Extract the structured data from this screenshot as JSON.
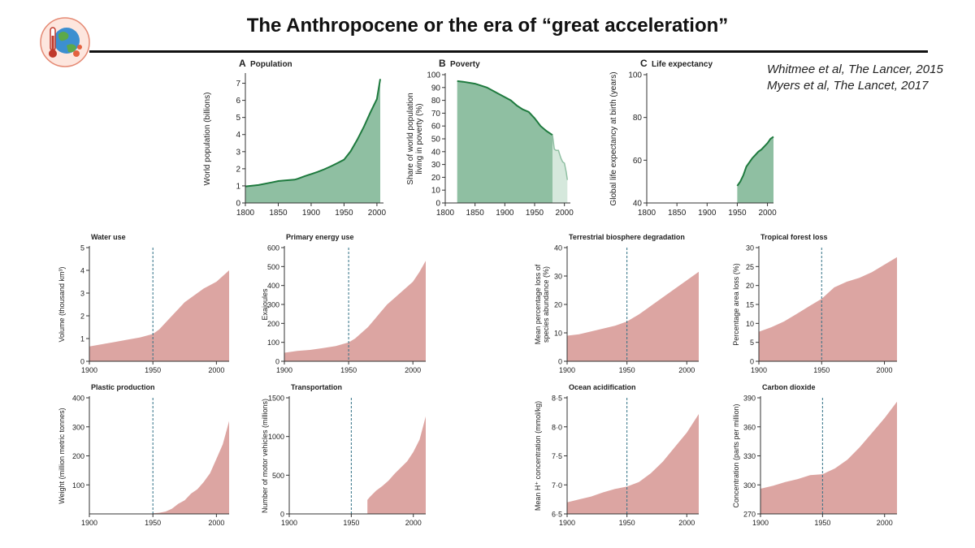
{
  "title": "The Anthropocene or the era of “great acceleration”",
  "references": [
    "Whitmee et al, The Lancer, 2015",
    "Myers et al, The Lancet, 2017"
  ],
  "colors": {
    "green_fill": "#8fbfa2",
    "green_line": "#1e7a3e",
    "green_light": "#d5e8dc",
    "red_fill": "#dca5a2",
    "rule": "#111111",
    "dashed": "#2e6f84"
  },
  "chart_data": [
    {
      "id": "population",
      "type": "area",
      "letter": "A",
      "title": "Population",
      "xlabel": "",
      "ylabel": "World population (billions)",
      "xlim": [
        1800,
        2010
      ],
      "ylim": [
        0,
        7.5
      ],
      "xticks": [
        1800,
        1850,
        1900,
        1950,
        2000
      ],
      "yticks": [
        0,
        1,
        2,
        3,
        4,
        5,
        6,
        7
      ],
      "x": [
        1800,
        1820,
        1840,
        1850,
        1860,
        1875,
        1880,
        1890,
        1900,
        1910,
        1920,
        1930,
        1940,
        1950,
        1960,
        1970,
        1980,
        1990,
        2000,
        2005
      ],
      "y": [
        0.97,
        1.05,
        1.2,
        1.28,
        1.32,
        1.36,
        1.42,
        1.56,
        1.69,
        1.82,
        1.97,
        2.14,
        2.33,
        2.53,
        3.02,
        3.69,
        4.44,
        5.29,
        6.08,
        7.25
      ]
    },
    {
      "id": "poverty",
      "type": "area",
      "letter": "B",
      "title": "Poverty",
      "xlabel": "",
      "ylabel": "Share of world population living in poverty (%)",
      "xlim": [
        1800,
        2010
      ],
      "ylim": [
        0,
        100
      ],
      "xticks": [
        1800,
        1850,
        1900,
        1950,
        2000
      ],
      "yticks": [
        0,
        10,
        20,
        30,
        40,
        50,
        60,
        70,
        80,
        90,
        100
      ],
      "series": [
        {
          "x": [
            1820,
            1830,
            1850,
            1870,
            1890,
            1910,
            1920,
            1930,
            1940,
            1950,
            1960,
            1970,
            1980
          ],
          "y": [
            95,
            94.5,
            93,
            90,
            85,
            80,
            76,
            73,
            71,
            66,
            60,
            56,
            53
          ]
        },
        {
          "x": [
            1980,
            1983,
            1986,
            1990,
            1994,
            1997,
            2000,
            2003,
            2005
          ],
          "y": [
            53,
            42,
            41,
            41,
            35,
            32,
            31,
            24,
            18
          ]
        }
      ]
    },
    {
      "id": "life_expectancy",
      "type": "area",
      "letter": "C",
      "title": "Life expectancy",
      "xlabel": "",
      "ylabel": "Global life expectancy at birth (years)",
      "xlim": [
        1800,
        2010
      ],
      "ylim": [
        40,
        100
      ],
      "xticks": [
        1800,
        1850,
        1900,
        1950,
        2000
      ],
      "yticks": [
        40,
        60,
        80,
        100
      ],
      "x": [
        1950,
        1955,
        1960,
        1965,
        1970,
        1975,
        1980,
        1985,
        1990,
        1995,
        2000,
        2005,
        2010
      ],
      "y": [
        48,
        50,
        53,
        57,
        59,
        61,
        62.5,
        64,
        65,
        66.5,
        68,
        70,
        71
      ]
    },
    {
      "id": "water",
      "type": "area",
      "title": "Water use",
      "xlabel": "",
      "ylabel": "Volume (thousand km³)",
      "xlim": [
        1900,
        2010
      ],
      "ylim": [
        0,
        5
      ],
      "marker": 1950,
      "xticks": [
        1900,
        1950,
        2000
      ],
      "yticks": [
        0,
        1,
        2,
        3,
        4,
        5
      ],
      "x": [
        1900,
        1910,
        1920,
        1930,
        1940,
        1950,
        1955,
        1960,
        1965,
        1970,
        1975,
        1980,
        1985,
        1990,
        1995,
        2000,
        2005,
        2010
      ],
      "y": [
        0.65,
        0.75,
        0.85,
        0.95,
        1.05,
        1.2,
        1.4,
        1.7,
        2.0,
        2.3,
        2.6,
        2.8,
        3.0,
        3.2,
        3.35,
        3.5,
        3.75,
        4.0
      ]
    },
    {
      "id": "energy",
      "type": "area",
      "title": "Primary energy use",
      "xlabel": "",
      "ylabel": "Exajoules",
      "xlim": [
        1900,
        2010
      ],
      "ylim": [
        0,
        600
      ],
      "marker": 1950,
      "xticks": [
        1900,
        1950,
        2000
      ],
      "yticks": [
        0,
        100,
        200,
        300,
        400,
        500,
        600
      ],
      "x": [
        1900,
        1910,
        1920,
        1930,
        1940,
        1950,
        1955,
        1960,
        1965,
        1970,
        1975,
        1980,
        1985,
        1990,
        1995,
        2000,
        2005,
        2010
      ],
      "y": [
        45,
        55,
        60,
        70,
        80,
        100,
        120,
        150,
        180,
        220,
        260,
        300,
        330,
        360,
        390,
        420,
        470,
        530
      ]
    },
    {
      "id": "plastic",
      "type": "area",
      "title": "Plastic production",
      "xlabel": "",
      "ylabel": "Weight (million metric tonnes)",
      "xlim": [
        1900,
        2010
      ],
      "ylim": [
        0,
        400
      ],
      "marker": 1950,
      "xticks": [
        1900,
        1950,
        2000
      ],
      "yticks": [
        100,
        200,
        300,
        400
      ],
      "x": [
        1950,
        1955,
        1960,
        1965,
        1970,
        1975,
        1980,
        1985,
        1990,
        1995,
        2000,
        2005,
        2010
      ],
      "y": [
        2,
        4,
        8,
        18,
        35,
        47,
        70,
        85,
        110,
        140,
        190,
        240,
        320
      ]
    },
    {
      "id": "transport",
      "type": "area",
      "title": "Transportation",
      "xlabel": "",
      "ylabel": "Number of motor vehicles (millions)",
      "xlim": [
        1900,
        2010
      ],
      "ylim": [
        0,
        1500
      ],
      "marker": 1950,
      "xticks": [
        1900,
        1950,
        2000
      ],
      "yticks": [
        0,
        500,
        1000,
        1500
      ],
      "x": [
        1963,
        1965,
        1970,
        1975,
        1980,
        1985,
        1990,
        1995,
        2000,
        2005,
        2010
      ],
      "y": [
        180,
        220,
        300,
        360,
        430,
        520,
        600,
        680,
        800,
        960,
        1260
      ]
    },
    {
      "id": "biosphere",
      "type": "area",
      "title": "Terrestrial biosphere degradation",
      "xlabel": "",
      "ylabel": "Mean percentage loss of species abundance (%)",
      "xlim": [
        1900,
        2010
      ],
      "ylim": [
        0,
        40
      ],
      "marker": 1950,
      "xticks": [
        1900,
        1950,
        2000
      ],
      "yticks": [
        0,
        10,
        20,
        30,
        40
      ],
      "x": [
        1900,
        1910,
        1920,
        1930,
        1940,
        1950,
        1960,
        1970,
        1980,
        1990,
        2000,
        2010
      ],
      "y": [
        9,
        9.5,
        10.5,
        11.5,
        12.5,
        14,
        16.5,
        19.5,
        22.5,
        25.5,
        28.5,
        31.5
      ]
    },
    {
      "id": "forest",
      "type": "area",
      "title": "Tropical forest loss",
      "xlabel": "",
      "ylabel": "Percentage area loss (%)",
      "xlim": [
        1900,
        2010
      ],
      "ylim": [
        0,
        30
      ],
      "marker": 1950,
      "xticks": [
        1900,
        1950,
        2000
      ],
      "yticks": [
        0,
        5,
        10,
        15,
        20,
        25,
        30
      ],
      "x": [
        1900,
        1910,
        1920,
        1930,
        1940,
        1950,
        1960,
        1970,
        1980,
        1990,
        2000,
        2010
      ],
      "y": [
        7.8,
        9,
        10.5,
        12.5,
        14.5,
        16.5,
        19.5,
        21,
        22,
        23.5,
        25.5,
        27.5
      ]
    },
    {
      "id": "ocean",
      "type": "area",
      "title": "Ocean acidification",
      "xlabel": "",
      "ylabel": "Mean H⁺ concentration (mmol/kg)",
      "xlim": [
        1900,
        2010
      ],
      "ylim": [
        6.5,
        8.5
      ],
      "marker": 1950,
      "xticks": [
        1900,
        1950,
        2000
      ],
      "yticks": [
        6.5,
        7.0,
        7.5,
        8.0,
        8.5
      ],
      "ytick_labels": [
        "6·5",
        "7·0",
        "7·5",
        "8·0",
        "8·5"
      ],
      "x": [
        1900,
        1910,
        1920,
        1930,
        1940,
        1950,
        1960,
        1970,
        1980,
        1990,
        2000,
        2010
      ],
      "y": [
        6.7,
        6.75,
        6.8,
        6.87,
        6.93,
        6.97,
        7.05,
        7.2,
        7.4,
        7.65,
        7.9,
        8.22
      ]
    },
    {
      "id": "co2",
      "type": "area",
      "title": "Carbon dioxide",
      "xlabel": "",
      "ylabel": "Concentration (parts per million)",
      "xlim": [
        1900,
        2010
      ],
      "ylim": [
        270,
        390
      ],
      "marker": 1950,
      "xticks": [
        1900,
        1950,
        2000
      ],
      "yticks": [
        270,
        300,
        330,
        360,
        390
      ],
      "x": [
        1900,
        1910,
        1920,
        1930,
        1940,
        1950,
        1960,
        1970,
        1980,
        1990,
        2000,
        2010
      ],
      "y": [
        296,
        299,
        303,
        306,
        310,
        311,
        317,
        326,
        339,
        354,
        369,
        386
      ]
    }
  ]
}
